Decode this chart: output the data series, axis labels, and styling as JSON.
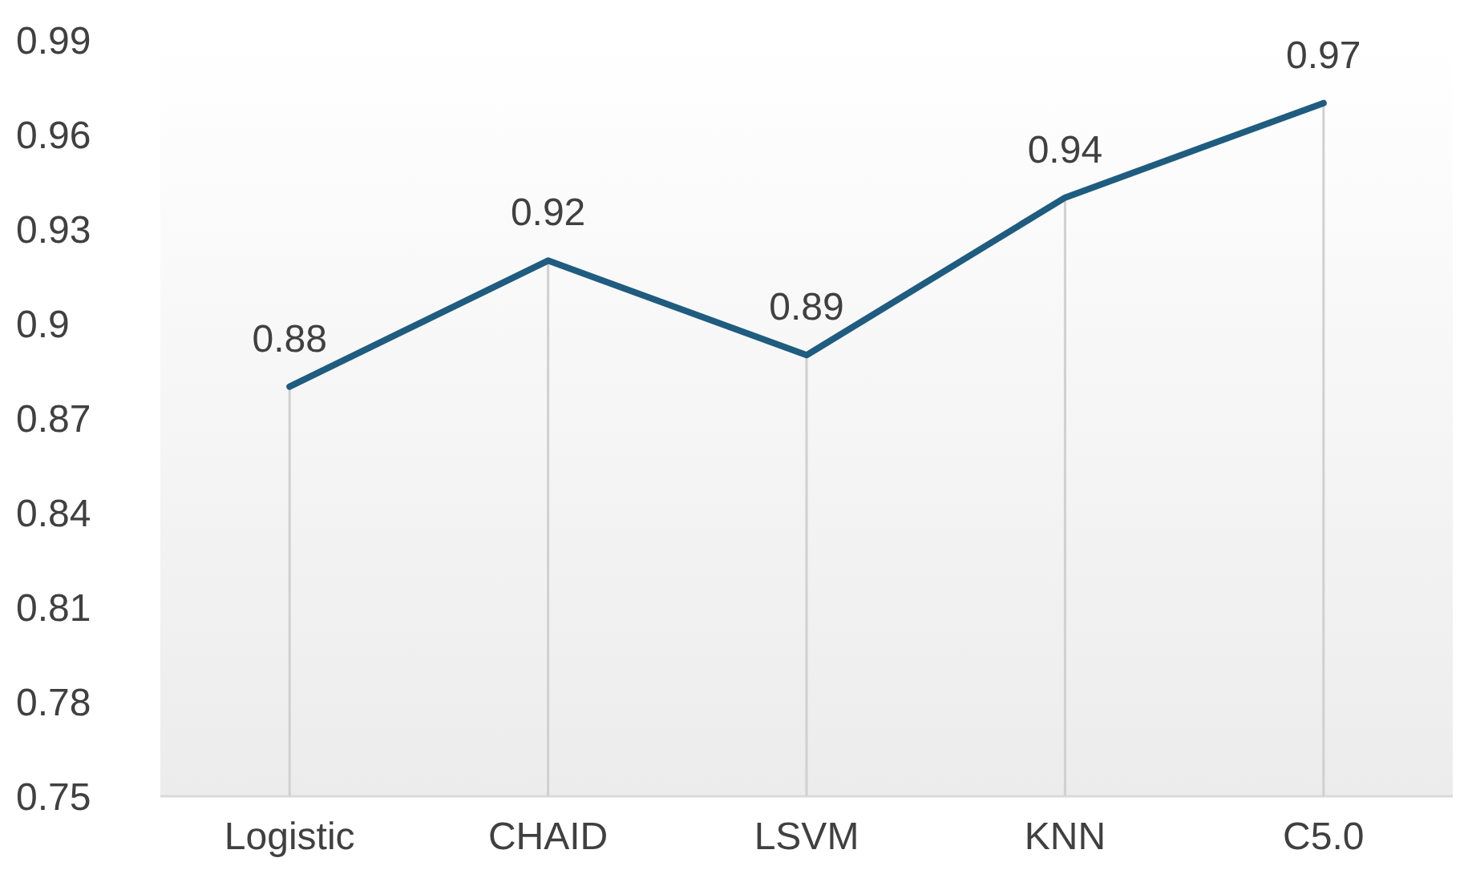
{
  "chart_data": {
    "type": "line",
    "categories": [
      "Logistic",
      "CHAID",
      "LSVM",
      "KNN",
      "C5.0"
    ],
    "series": [
      {
        "color": "#1f5c7f",
        "values": [
          0.88,
          0.92,
          0.89,
          0.94,
          0.97
        ]
      }
    ],
    "ylim": [
      0.75,
      0.99
    ],
    "yticks": [
      0.75,
      0.78,
      0.81,
      0.84,
      0.87,
      0.9,
      0.93,
      0.96,
      0.99
    ],
    "data_labels": true,
    "marker": "none",
    "line_style": "solid",
    "grid": "x"
  }
}
